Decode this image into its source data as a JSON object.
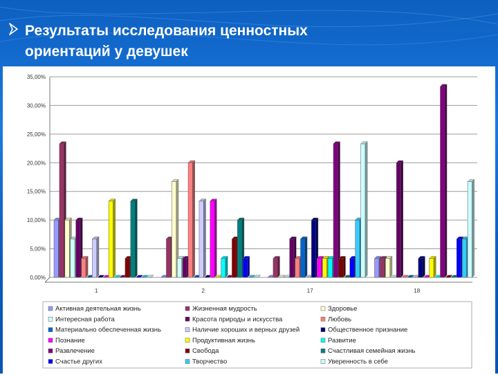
{
  "slide": {
    "title_line1": "Результаты исследования ценностных",
    "title_line2": "ориентаций у девушек",
    "background_color": "#0d62c6",
    "title_color": "#ffffff",
    "bullet_icon": "arrow-bullet-icon"
  },
  "chart_data": {
    "type": "bar",
    "title": "",
    "xlabel": "",
    "ylabel": "",
    "ylim": [
      0,
      35
    ],
    "grid": true,
    "legend_position": "bottom",
    "categories": [
      "1",
      "2",
      "17",
      "18"
    ],
    "y_ticks": [
      "0,00%",
      "5,00%",
      "10,00%",
      "15,00%",
      "20,00%",
      "25,00%",
      "30,00%",
      "35,00%"
    ],
    "series": [
      {
        "name": "Активная деятельная жизнь",
        "color": "#9999ff",
        "values": [
          10,
          0,
          0,
          3.3
        ]
      },
      {
        "name": "Жизненная мудрость",
        "color": "#993366",
        "values": [
          23.3,
          6.7,
          3.3,
          3.3
        ]
      },
      {
        "name": "Здоровье",
        "color": "#ffffcc",
        "values": [
          10,
          16.7,
          0,
          3.3
        ]
      },
      {
        "name": "Интересная работа",
        "color": "#ccffff",
        "values": [
          6.7,
          3.3,
          0,
          0
        ]
      },
      {
        "name": "Красота природы и искусства",
        "color": "#660066",
        "values": [
          10,
          3.3,
          6.7,
          20
        ]
      },
      {
        "name": "Любовь",
        "color": "#ff8080",
        "values": [
          3.3,
          20,
          3.3,
          0
        ]
      },
      {
        "name": "Материально обеспеченная жизнь",
        "color": "#0066cc",
        "values": [
          0,
          0,
          6.7,
          0
        ]
      },
      {
        "name": "Наличие хороших и верных друзей",
        "color": "#ccccff",
        "values": [
          6.7,
          13.3,
          0,
          0
        ]
      },
      {
        "name": "Общественное признание",
        "color": "#000080",
        "values": [
          0,
          0,
          10,
          3.3
        ]
      },
      {
        "name": "Познание",
        "color": "#ff00ff",
        "values": [
          0,
          13.3,
          3.3,
          0
        ]
      },
      {
        "name": "Продуктивная жизнь",
        "color": "#ffff00",
        "values": [
          13.3,
          0,
          3.3,
          3.3
        ]
      },
      {
        "name": "Развитие",
        "color": "#00ffff",
        "values": [
          0,
          3.3,
          3.3,
          0
        ]
      },
      {
        "name": "Развлечение",
        "color": "#800080",
        "values": [
          0,
          0,
          23.3,
          33.3
        ]
      },
      {
        "name": "Свобода",
        "color": "#800000",
        "values": [
          3.3,
          6.7,
          3.3,
          0
        ]
      },
      {
        "name": "Счастливая семейная жизнь",
        "color": "#008080",
        "values": [
          13.3,
          10,
          0,
          0
        ]
      },
      {
        "name": "Счастье других",
        "color": "#0000ff",
        "values": [
          0,
          3.3,
          3.3,
          6.7
        ]
      },
      {
        "name": "Творчество",
        "color": "#33ccff",
        "values": [
          0,
          0,
          10,
          6.7
        ]
      },
      {
        "name": "Уверенность в себе",
        "color": "#ccffff",
        "values": [
          0,
          0,
          23.3,
          16.7
        ]
      }
    ]
  }
}
